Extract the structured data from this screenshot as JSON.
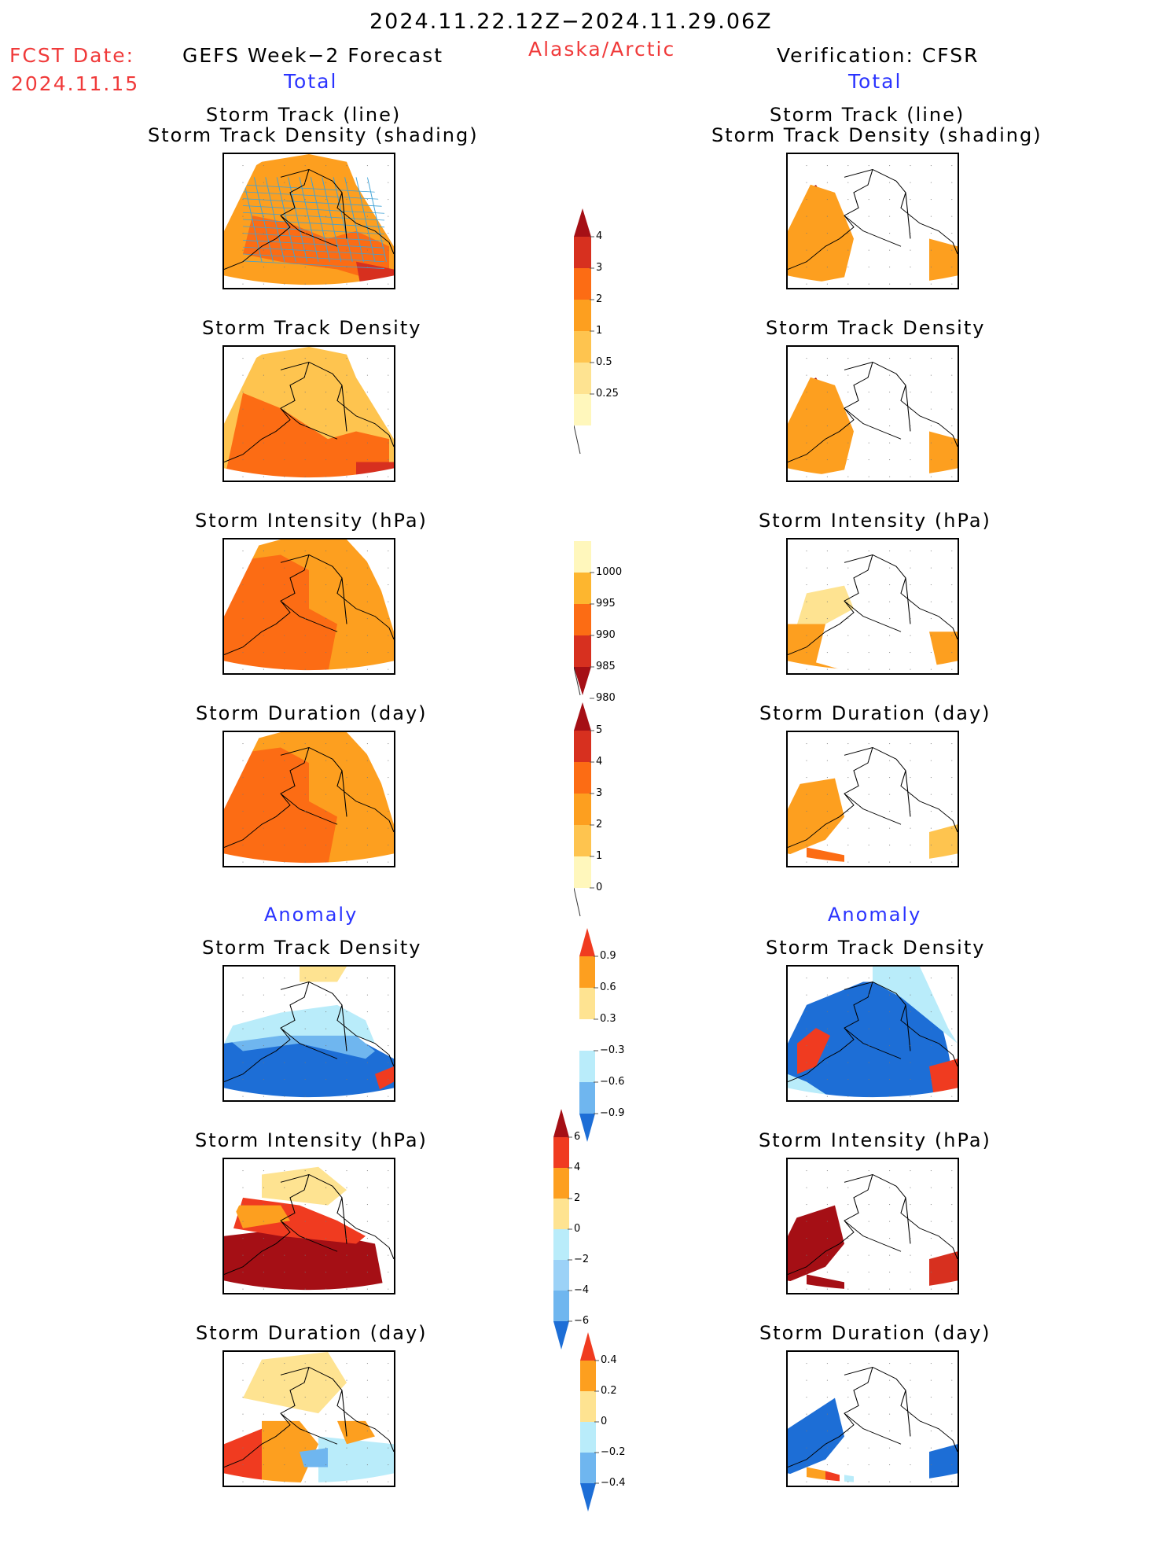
{
  "header": {
    "period": "2024.11.22.12Z−2024.11.29.06Z",
    "fcst_date_label": "FCST Date:",
    "fcst_date_value": "2024.11.15",
    "left_model": "GEFS Week−2 Forecast",
    "region": "Alaska/Arctic",
    "right_model": "Verification: CFSR",
    "left_section": "Total",
    "right_section": "Total",
    "left_anomaly": "Anomaly",
    "right_anomaly": "Anomaly"
  },
  "panel_titles": {
    "track_line": "Storm Track (line)",
    "track_shading": "Storm Track Density (shading)",
    "density": "Storm Track Density",
    "intensity": "Storm Intensity (hPa)",
    "duration": "Storm Duration (day)"
  },
  "colorbars": {
    "density": {
      "labels": [
        "4",
        "3",
        "2",
        "1",
        "0.5",
        "0.25"
      ],
      "colors": [
        "#a50f15",
        "#d7301f",
        "#fc6c14",
        "#fd9f1f",
        "#fec44f",
        "#fee391",
        "#fff7bc"
      ]
    },
    "intensity": {
      "labels": [
        "1000",
        "995",
        "990",
        "985",
        "980"
      ],
      "colors": [
        "#fff7bc",
        "#fdb62f",
        "#fc6c14",
        "#d7301f",
        "#a50f15"
      ]
    },
    "duration": {
      "labels": [
        "5",
        "4",
        "3",
        "2",
        "1",
        "0"
      ],
      "colors": [
        "#a50f15",
        "#d7301f",
        "#fc6c14",
        "#fd9f1f",
        "#fec44f",
        "#fff7bc"
      ]
    },
    "anom_density": {
      "labels": [
        "0.9",
        "0.6",
        "0.3",
        "−0.3",
        "−0.6",
        "−0.9"
      ],
      "colors": [
        "#f03b20",
        "#fd9f1f",
        "#fee391",
        "#ffffff",
        "#b9ecfa",
        "#6fb6ef",
        "#1d6ed6"
      ]
    },
    "anom_intensity": {
      "labels": [
        "6",
        "4",
        "2",
        "0",
        "−2",
        "−4",
        "−6"
      ],
      "colors": [
        "#a50f15",
        "#f03b20",
        "#fd9f1f",
        "#fee391",
        "#b9ecfa",
        "#9cd2f7",
        "#6fb6ef",
        "#1d6ed6"
      ]
    },
    "anom_duration": {
      "labels": [
        "0.4",
        "0.2",
        "0",
        "−0.2",
        "−0.4"
      ],
      "colors": [
        "#f03b20",
        "#fd9f1f",
        "#fee391",
        "#b9ecfa",
        "#6fb6ef",
        "#1d6ed6"
      ]
    }
  },
  "colors": {
    "dark_red": "#a50f15",
    "red": "#d7301f",
    "orange_red": "#fc6c14",
    "orange": "#fd9f1f",
    "light_orange": "#fec44f",
    "yellow": "#fee391",
    "pale_yellow": "#fff7bc",
    "light_blue": "#b9ecfa",
    "mid_blue": "#6fb6ef",
    "blue": "#1d6ed6",
    "bright_red": "#f03b20",
    "track_line": "#3fa2d6"
  }
}
